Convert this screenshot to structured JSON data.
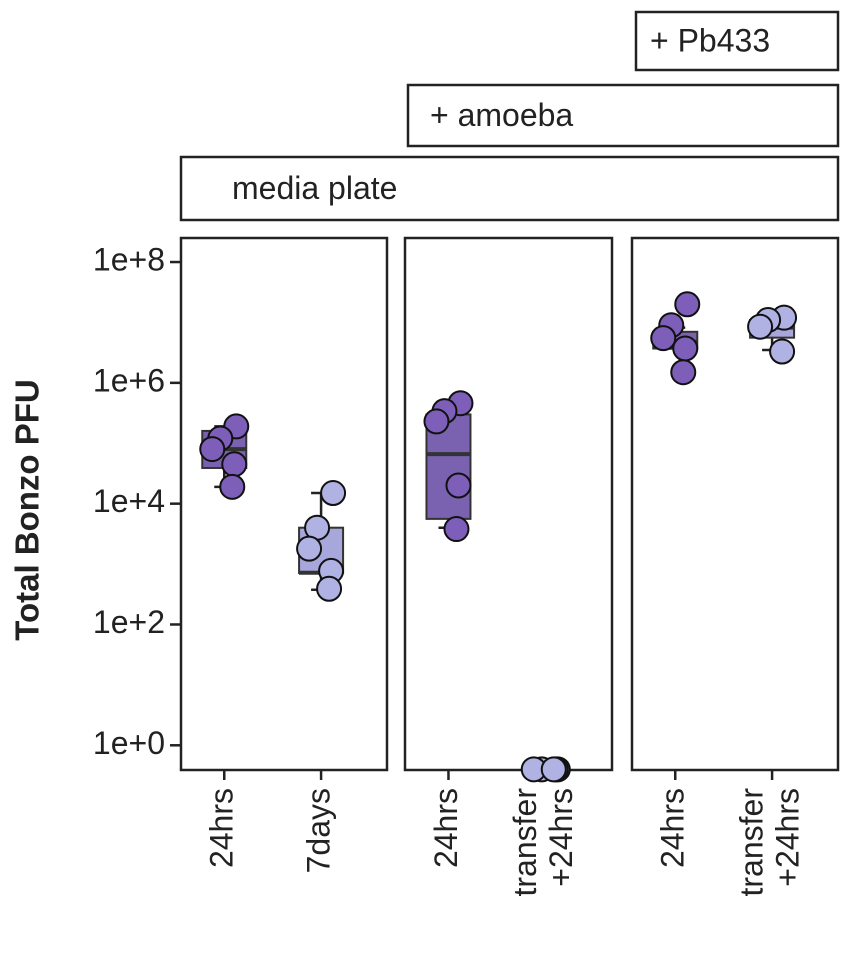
{
  "chart_data": {
    "type": "box",
    "y_label": "Total Bonzo PFU",
    "log_scale": true,
    "ylim": [
      0.39,
      250000000
    ],
    "yticks": [
      {
        "value": 1,
        "label": "1e+0"
      },
      {
        "value": 100,
        "label": "1e+2"
      },
      {
        "value": 10000,
        "label": "1e+4"
      },
      {
        "value": 1000000,
        "label": "1e+6"
      },
      {
        "value": 100000000,
        "label": "1e+8"
      }
    ],
    "strips": [
      "media plate",
      "+ amoeba",
      "+ Pb433"
    ],
    "panels": [
      {
        "categories": [
          [
            "24hrs"
          ],
          [
            "7days"
          ]
        ],
        "boxes": [
          {
            "color": "#7a62b1",
            "point_color": "#7d5fba",
            "min": 19000,
            "q1": 39000,
            "median": 80000,
            "q3": 160000,
            "max": 190000,
            "points": [
              190000,
              120000,
              80000,
              45000,
              19000
            ]
          },
          {
            "color": "#a8a7db",
            "point_color": "#b0b2e3",
            "min": 375,
            "q1": 710,
            "median": 720,
            "q3": 4000,
            "max": 15000,
            "points": [
              15000,
              4000,
              1800,
              770,
              390
            ]
          }
        ]
      },
      {
        "categories": [
          [
            "24hrs"
          ],
          [
            "transfer",
            "+24hrs"
          ]
        ],
        "boxes": [
          {
            "color": "#7a62b1",
            "point_color": "#7d5fba",
            "min": 4000,
            "q1": 5600,
            "median": 66000,
            "q3": 300000,
            "max": 480000,
            "points": [
              460000,
              340000,
              230000,
              20000,
              3800
            ]
          },
          {
            "color": "#a8a7db",
            "point_color": "#b0b2e3",
            "min": 0.4,
            "q1": 0.4,
            "median": 0.4,
            "q3": 0.4,
            "max": 0.4,
            "points": [
              0.4,
              0.4,
              0.4,
              0.4,
              0.4
            ]
          }
        ]
      },
      {
        "categories": [
          [
            "24hrs"
          ],
          [
            "transfer",
            "+24hrs"
          ]
        ],
        "boxes": [
          {
            "color": "#7a62b1",
            "point_color": "#7d5fba",
            "min": 3700000,
            "q1": 3700000,
            "median": 4800000,
            "q3": 7000000,
            "max": 8200000,
            "points": [
              20000000,
              9000000,
              5500000,
              3700000,
              1500000
            ]
          },
          {
            "color": "#a8a7db",
            "point_color": "#b0b2e3",
            "min": 3500000,
            "q1": 5600000,
            "median": 8200000,
            "q3": 11000000,
            "max": 12000000,
            "points": [
              12000000,
              11000000,
              8500000,
              3300000
            ]
          }
        ]
      }
    ]
  }
}
